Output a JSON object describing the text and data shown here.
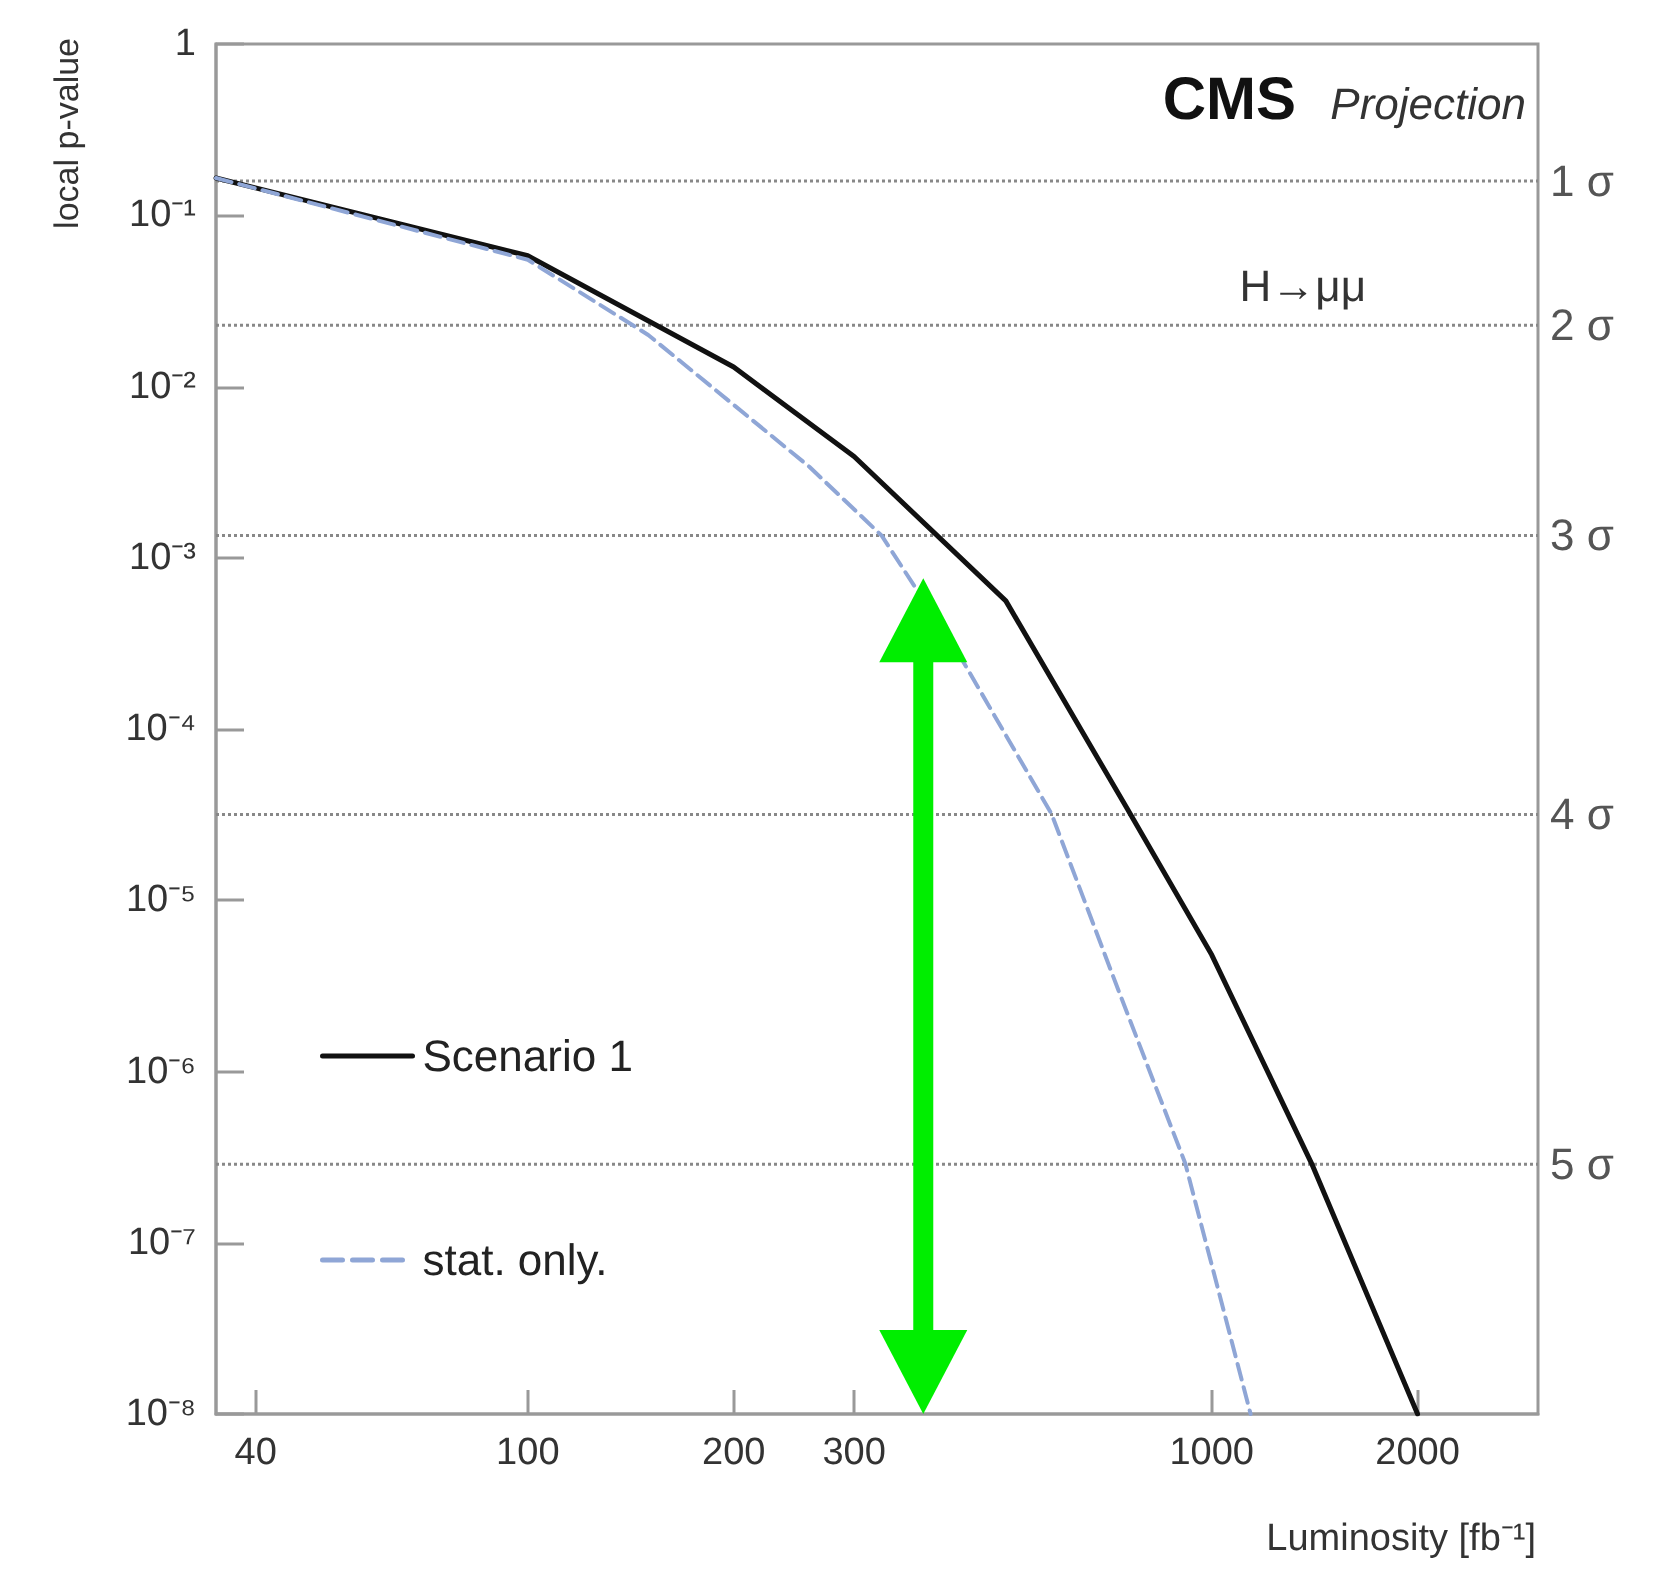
{
  "chart_data": {
    "type": "line",
    "xlabel": "Luminosity [fb⁻¹]",
    "ylabel": "local p-value",
    "annotations": [
      "CMS",
      "Projection",
      "H→μμ"
    ],
    "log": "xy",
    "xlim": [
      35,
      3000
    ],
    "xticks": [
      40,
      100,
      200,
      300,
      1000,
      2000
    ],
    "ylim": [
      1e-08,
      1
    ],
    "yticks": [
      {
        "value": 1e-08,
        "label": "10⁻⁸"
      },
      {
        "value": 1e-07,
        "label": "10⁻⁷"
      },
      {
        "value": 1e-06,
        "label": "10⁻⁶"
      },
      {
        "value": 1e-05,
        "label": "10⁻⁵"
      },
      {
        "value": 0.0001,
        "label": "10⁻⁴"
      },
      {
        "value": 0.001,
        "label": "10⁻³"
      },
      {
        "value": 0.01,
        "label": "10⁻²"
      },
      {
        "value": 0.1,
        "label": "10⁻¹"
      },
      1
    ],
    "grid": false,
    "legend": "left",
    "marker": "none",
    "series": [
      {
        "name": "Scenario 1",
        "color": "#111111",
        "line_style": "solid",
        "x": [
          35,
          100,
          200,
          300,
          500,
          750,
          1000,
          1400,
          2000
        ],
        "values": [
          0.165,
          0.058,
          0.013,
          0.0039,
          0.00056,
          3.5e-05,
          4.8e-06,
          2.9e-07,
          1e-08
        ]
      },
      {
        "name": "stat. only.",
        "color": "#8fa6d6",
        "line_style": "dashed",
        "x": [
          35,
          100,
          150,
          258,
          329,
          430,
          583,
          730,
          915,
          1140
        ],
        "values": [
          0.165,
          0.055,
          0.02,
          0.0034,
          0.00135,
          0.00026,
          3.2e-05,
          3e-06,
          2.9e-07,
          1e-08
        ]
      }
    ],
    "ref_lines": [
      {
        "axis": "y",
        "value": 0.1587,
        "label": "1 σ",
        "color": "#888888",
        "line_style": "dotted"
      },
      {
        "axis": "y",
        "value": 0.02275,
        "label": "2 σ",
        "color": "#888888",
        "line_style": "dotted"
      },
      {
        "axis": "y",
        "value": 0.00135,
        "label": "3 σ",
        "color": "#888888",
        "line_style": "dotted"
      },
      {
        "axis": "y",
        "value": 3.17e-05,
        "label": "4 σ",
        "color": "#888888",
        "line_style": "dotted"
      },
      {
        "axis": "y",
        "value": 2.87e-07,
        "label": "5 σ",
        "color": "#888888",
        "line_style": "dotted"
      }
    ]
  }
}
